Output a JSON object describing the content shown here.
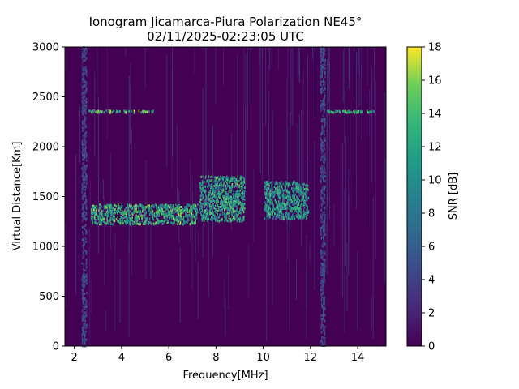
{
  "chart_data": {
    "type": "heatmap",
    "title": "Ionogram Jicamarca-Piura Polarization NE45°",
    "subtitle": "02/11/2025-02:23:05 UTC",
    "xlabel": "Frequency[MHz]",
    "ylabel": "Virtual Distance[Km]",
    "xlim": [
      1.6,
      15.2
    ],
    "ylim": [
      0,
      3000
    ],
    "x_ticks": [
      "2",
      "4",
      "6",
      "8",
      "10",
      "12",
      "14"
    ],
    "y_ticks": [
      "0",
      "500",
      "1000",
      "1500",
      "2000",
      "2500",
      "3000"
    ],
    "colorbar": {
      "label": "SNR [dB]",
      "range": [
        0,
        18
      ],
      "ticks": [
        "0",
        "2",
        "4",
        "6",
        "8",
        "10",
        "12",
        "14",
        "16",
        "18"
      ],
      "colormap": "viridis"
    },
    "grid": false,
    "background_color": "#440154",
    "echo_regions": [
      {
        "freq_range": [
          2.7,
          7.2
        ],
        "distance_range": [
          1220,
          1420
        ],
        "snr_db": 16
      },
      {
        "freq_range": [
          7.3,
          9.2
        ],
        "distance_range": [
          1250,
          1700
        ],
        "snr_db": 15
      },
      {
        "freq_range": [
          10.0,
          11.9
        ],
        "distance_range": [
          1270,
          1650
        ],
        "snr_db": 14
      },
      {
        "freq_range": [
          2.6,
          5.4
        ],
        "distance_range": [
          2340,
          2360
        ],
        "snr_db": 17
      },
      {
        "freq_range": [
          12.7,
          14.7
        ],
        "distance_range": [
          2340,
          2360
        ],
        "snr_db": 17
      },
      {
        "freq_range": [
          2.3,
          2.5
        ],
        "distance_range": [
          0,
          3000
        ],
        "snr_db": 6
      },
      {
        "freq_range": [
          12.4,
          12.6
        ],
        "distance_range": [
          0,
          3000
        ],
        "snr_db": 6
      }
    ]
  }
}
